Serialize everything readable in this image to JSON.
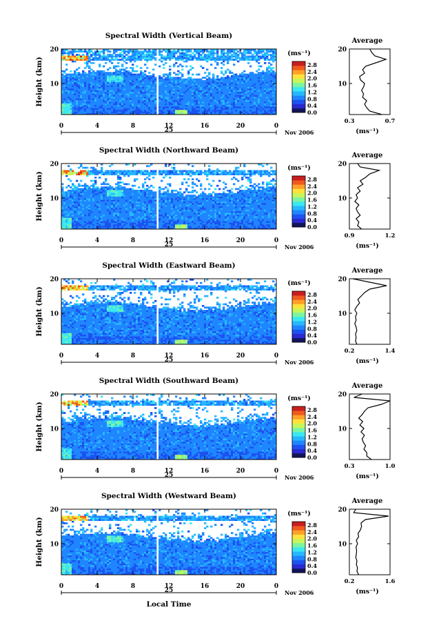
{
  "figure": {
    "month_label": "Nov 2006",
    "day_label": "25",
    "xlabel": "Local Time",
    "colorbar_unit": "(ms⁻¹)",
    "colorbar_ticks": [
      "0.0",
      "0.4",
      "0.8",
      "1.2",
      "1.6",
      "2.0",
      "2.4",
      "2.8"
    ],
    "colors": [
      "#14145a",
      "#2a2ad0",
      "#1c52f0",
      "#1f86ff",
      "#27b8ff",
      "#3ce8f0",
      "#7cf5a0",
      "#c8f55a",
      "#ffe23c",
      "#ffa028",
      "#f05a1e",
      "#c81e1e"
    ],
    "profile_title": "Average",
    "profile_xlabel": "(ms⁻¹)"
  },
  "chart_data": [
    {
      "type": "heatmap",
      "title": "Spectral Width (Vertical Beam)",
      "xlabel": "Local Time",
      "ylabel": "Height (km)",
      "x_ticks": [
        "0",
        "4",
        "8",
        "12",
        "16",
        "20",
        "0"
      ],
      "y_ticks": [
        "10",
        "20"
      ],
      "xlim": [
        0,
        24
      ],
      "ylim": [
        1,
        20
      ],
      "data_gap_hours": [
        10.6,
        10.9
      ],
      "colorbar_range": [
        0.0,
        3.0
      ],
      "profile": {
        "title": "Average",
        "xlim": [
          0.3,
          0.7
        ],
        "x_ticks": [
          "0.3",
          "0.7"
        ],
        "y_ticks": [
          "10",
          "20"
        ],
        "heights": [
          1,
          2,
          3,
          4,
          5,
          6,
          7,
          8,
          9,
          10,
          11,
          12,
          13,
          14,
          15,
          16,
          17,
          18,
          19,
          20
        ],
        "values": [
          0.62,
          0.5,
          0.47,
          0.45,
          0.47,
          0.43,
          0.44,
          0.42,
          0.44,
          0.45,
          0.41,
          0.4,
          0.45,
          0.43,
          0.46,
          0.56,
          0.66,
          0.55,
          0.52,
          0.5
        ]
      }
    },
    {
      "type": "heatmap",
      "title": "Spectral Width (Northward Beam)",
      "xlabel": "Local Time",
      "ylabel": "Height (km)",
      "x_ticks": [
        "0",
        "4",
        "8",
        "12",
        "16",
        "20",
        "0"
      ],
      "y_ticks": [
        "10",
        "20"
      ],
      "xlim": [
        0,
        24
      ],
      "ylim": [
        1,
        20
      ],
      "data_gap_hours": [
        10.6,
        10.9
      ],
      "colorbar_range": [
        0.0,
        3.0
      ],
      "profile": {
        "title": "Average",
        "xlim": [
          0.9,
          1.2
        ],
        "x_ticks": [
          "0.9",
          "1.2"
        ],
        "y_ticks": [
          "10",
          "20"
        ],
        "heights": [
          1,
          2,
          3,
          4,
          5,
          6,
          7,
          8,
          9,
          10,
          11,
          12,
          13,
          14,
          15,
          16,
          17,
          18,
          19,
          20
        ],
        "values": [
          0.99,
          0.96,
          0.97,
          0.95,
          0.98,
          0.96,
          0.95,
          0.97,
          0.94,
          0.96,
          0.95,
          0.98,
          0.96,
          1.0,
          0.98,
          1.02,
          1.05,
          1.12,
          0.98,
          0.96
        ]
      }
    },
    {
      "type": "heatmap",
      "title": "Spectral Width (Eastward Beam)",
      "xlabel": "Local Time",
      "ylabel": "Height (km)",
      "x_ticks": [
        "0",
        "4",
        "8",
        "12",
        "16",
        "20",
        "0"
      ],
      "y_ticks": [
        "10",
        "20"
      ],
      "xlim": [
        0,
        24
      ],
      "ylim": [
        1,
        20
      ],
      "data_gap_hours": [
        10.6,
        10.9
      ],
      "colorbar_range": [
        0.0,
        3.0
      ],
      "profile": {
        "title": "Average",
        "xlim": [
          0.2,
          1.4
        ],
        "x_ticks": [
          "0.2",
          "1.4"
        ],
        "y_ticks": [
          "10",
          "20"
        ],
        "heights": [
          1,
          2,
          3,
          4,
          5,
          6,
          7,
          8,
          9,
          10,
          11,
          12,
          13,
          14,
          15,
          16,
          17,
          18,
          19,
          20
        ],
        "values": [
          0.42,
          0.38,
          0.4,
          0.38,
          0.42,
          0.4,
          0.36,
          0.4,
          0.38,
          0.42,
          0.36,
          0.42,
          0.5,
          0.45,
          0.55,
          0.65,
          0.8,
          1.3,
          0.8,
          0.3
        ]
      }
    },
    {
      "type": "heatmap",
      "title": "Spectral Width (Southward Beam)",
      "xlabel": "Local Time",
      "ylabel": "Height (km)",
      "x_ticks": [
        "0",
        "4",
        "8",
        "12",
        "16",
        "20",
        "0"
      ],
      "y_ticks": [
        "10",
        "20"
      ],
      "xlim": [
        0,
        24
      ],
      "ylim": [
        1,
        20
      ],
      "data_gap_hours": [
        10.6,
        10.9
      ],
      "colorbar_range": [
        0.0,
        3.0
      ],
      "profile": {
        "title": "Average",
        "xlim": [
          0.3,
          1.0
        ],
        "x_ticks": [
          "0.3",
          "1.0"
        ],
        "y_ticks": [
          "10",
          "20"
        ],
        "heights": [
          1,
          2,
          3,
          4,
          5,
          6,
          7,
          8,
          9,
          10,
          11,
          12,
          13,
          14,
          15,
          16,
          17,
          18,
          19,
          20
        ],
        "values": [
          0.68,
          0.6,
          0.6,
          0.55,
          0.58,
          0.54,
          0.52,
          0.56,
          0.5,
          0.55,
          0.48,
          0.53,
          0.46,
          0.52,
          0.56,
          0.62,
          0.85,
          1.0,
          0.38,
          0.52
        ]
      }
    },
    {
      "type": "heatmap",
      "title": "Spectral Width (Westward Beam)",
      "xlabel": "Local Time",
      "ylabel": "Height (km)",
      "x_ticks": [
        "0",
        "4",
        "8",
        "12",
        "16",
        "20",
        "0"
      ],
      "y_ticks": [
        "10",
        "20"
      ],
      "xlim": [
        0,
        24
      ],
      "ylim": [
        1,
        20
      ],
      "data_gap_hours": [
        10.6,
        10.9
      ],
      "colorbar_range": [
        0.0,
        3.0
      ],
      "profile": {
        "title": "Average",
        "xlim": [
          0.2,
          1.6
        ],
        "x_ticks": [
          "0.2",
          "1.6"
        ],
        "y_ticks": [
          "10",
          "20"
        ],
        "heights": [
          1,
          2,
          3,
          4,
          5,
          6,
          7,
          8,
          9,
          10,
          11,
          12,
          13,
          14,
          15,
          16,
          17,
          18,
          19,
          20
        ],
        "values": [
          0.52,
          0.46,
          0.48,
          0.44,
          0.46,
          0.42,
          0.44,
          0.45,
          0.43,
          0.48,
          0.44,
          0.52,
          0.5,
          0.58,
          0.62,
          0.6,
          0.75,
          1.55,
          0.35,
          0.42
        ]
      }
    }
  ]
}
